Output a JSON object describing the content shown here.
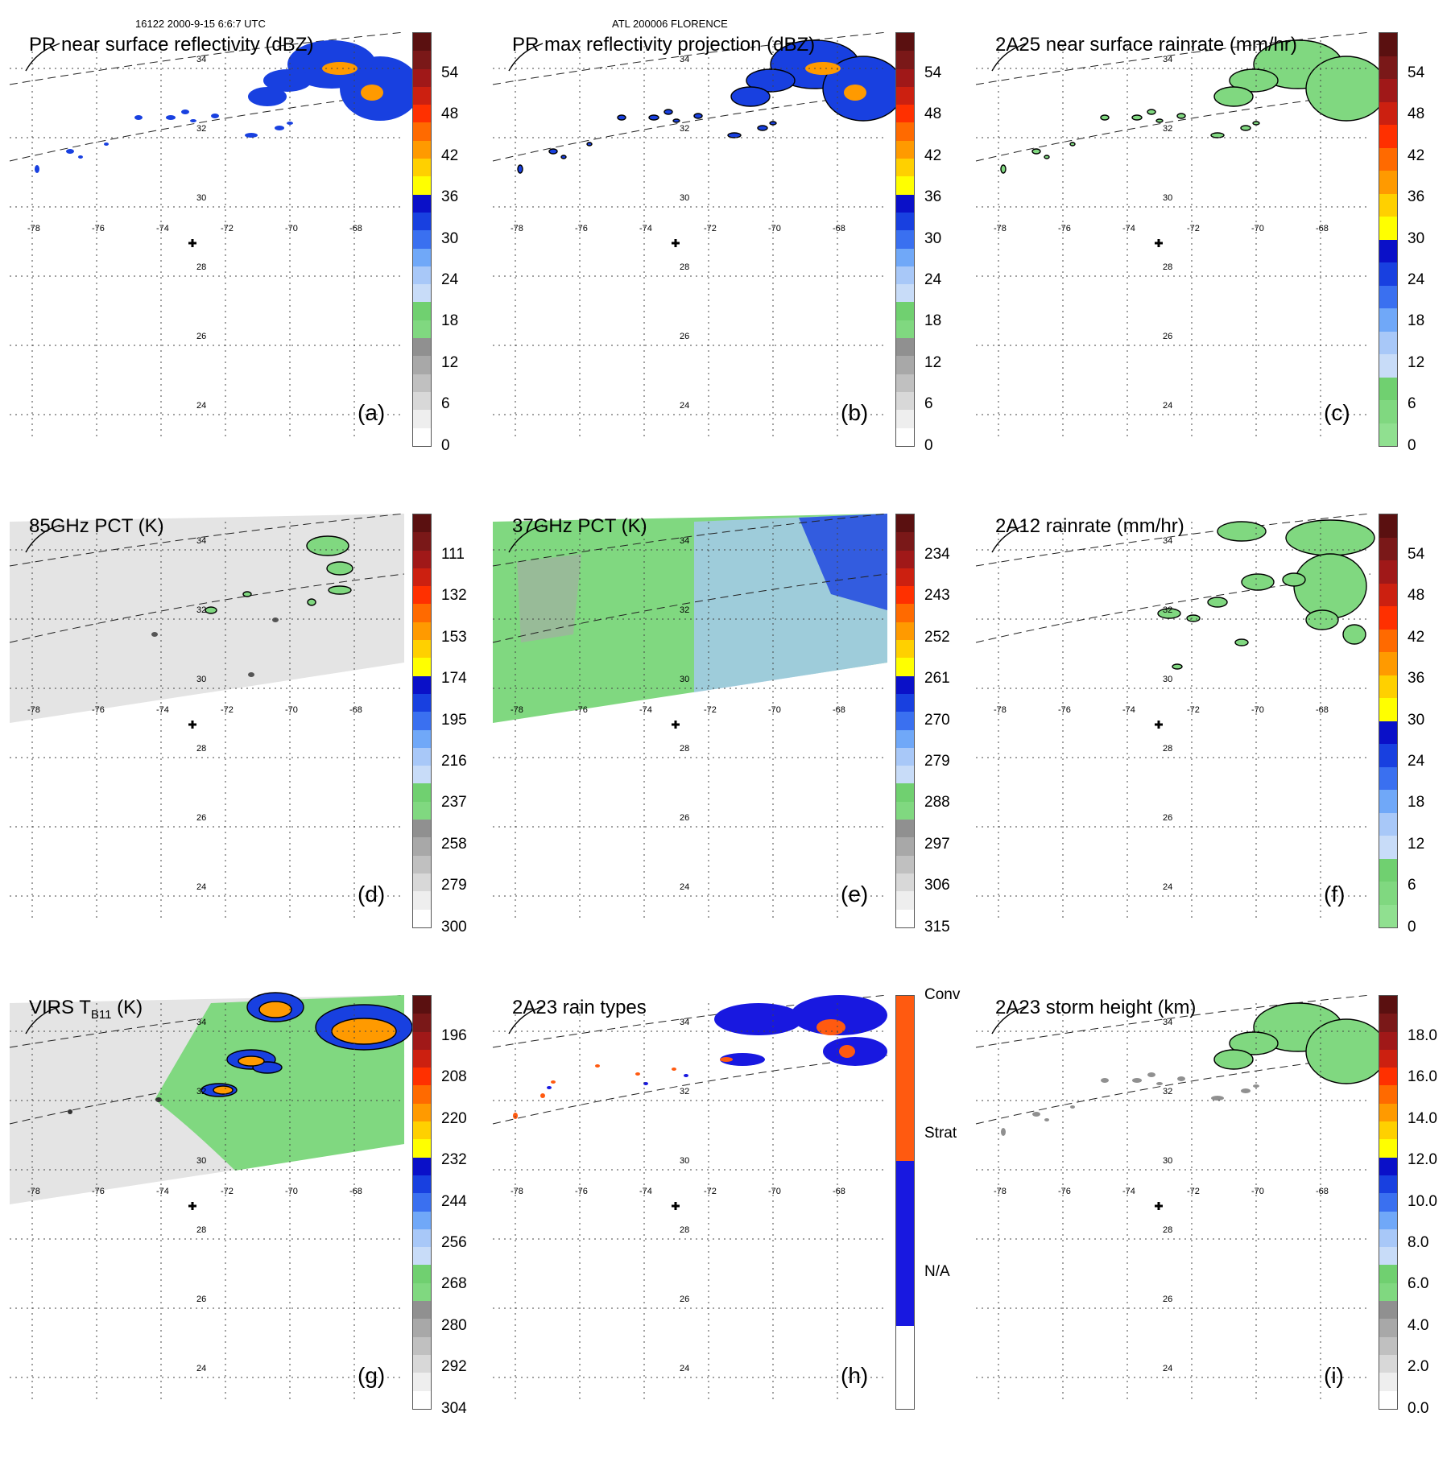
{
  "header": {
    "left": "16122 2000-9-15 6:6:7 UTC",
    "center": "ATL 200006 FLORENCE"
  },
  "axes": {
    "lon_labels": [
      "-78",
      "-76",
      "-74",
      "-72",
      "-70",
      "-68"
    ],
    "lat_labels": [
      "34",
      "32",
      "30",
      "28",
      "26",
      "24"
    ]
  },
  "panels": [
    {
      "id": "a",
      "title": "PR near surface reflectivity (dBZ)",
      "tag": "(a)",
      "cbar_labels": [
        "54",
        "48",
        "42",
        "36",
        "30",
        "24",
        "18",
        "12",
        "6",
        "0"
      ],
      "cbar": "dbz",
      "swath": "none"
    },
    {
      "id": "b",
      "title": "PR max reflectivity projection (dBZ)",
      "tag": "(b)",
      "cbar_labels": [
        "54",
        "48",
        "42",
        "36",
        "30",
        "24",
        "18",
        "12",
        "6",
        "0"
      ],
      "cbar": "dbz",
      "swath": "none"
    },
    {
      "id": "c",
      "title": "2A25 near surface rainrate (mm/hr)",
      "tag": "(c)",
      "cbar_labels": [
        "54",
        "48",
        "42",
        "36",
        "30",
        "24",
        "18",
        "12",
        "6",
        "0"
      ],
      "cbar": "rain",
      "swath": "none"
    },
    {
      "id": "d",
      "title": "85GHz PCT (K)",
      "tag": "(d)",
      "cbar_labels": [
        "111",
        "132",
        "153",
        "174",
        "195",
        "216",
        "237",
        "258",
        "279",
        "300"
      ],
      "cbar": "pct",
      "swath": "gray"
    },
    {
      "id": "e",
      "title": "37GHz PCT (K)",
      "tag": "(e)",
      "cbar_labels": [
        "234",
        "243",
        "252",
        "261",
        "270",
        "279",
        "288",
        "297",
        "306",
        "315"
      ],
      "cbar": "pct",
      "swath": "green"
    },
    {
      "id": "f",
      "title": "2A12 rainrate (mm/hr)",
      "tag": "(f)",
      "cbar_labels": [
        "54",
        "48",
        "42",
        "36",
        "30",
        "24",
        "18",
        "12",
        "6",
        "0"
      ],
      "cbar": "rain",
      "swath": "none"
    },
    {
      "id": "g",
      "title": "VIRS T",
      "title_sub": "B11",
      "title_suffix": " (K)",
      "tag": "(g)",
      "cbar_labels": [
        "196",
        "208",
        "220",
        "232",
        "244",
        "256",
        "268",
        "280",
        "292",
        "304"
      ],
      "cbar": "pct",
      "swath": "gray"
    },
    {
      "id": "h",
      "title": "2A23 rain types",
      "tag": "(h)",
      "cbar_labels": [
        "Conv",
        "Strat",
        "N/A"
      ],
      "cbar": "types",
      "swath": "none"
    },
    {
      "id": "i",
      "title": "2A23 storm height (km)",
      "tag": "(i)",
      "cbar_labels": [
        "18.0",
        "16.0",
        "14.0",
        "12.0",
        "10.0",
        "8.0",
        "6.0",
        "4.0",
        "2.0",
        "0.0"
      ],
      "cbar": "dbz",
      "swath": "none"
    }
  ],
  "colors": {
    "dbz": [
      "#5a1010",
      "#7a1818",
      "#a01818",
      "#cc2010",
      "#ff3000",
      "#ff6a00",
      "#ff9a00",
      "#ffd000",
      "#ffff00",
      "#0a10c8",
      "#1840e0",
      "#3a70f0",
      "#70a8f8",
      "#a8c8f8",
      "#c8dcf8",
      "#70d070",
      "#80d880",
      "#909090",
      "#a8a8a8",
      "#c0c0c0",
      "#d8d8d8",
      "#eeeeee",
      "#ffffff"
    ],
    "pct": [
      "#5a1010",
      "#7a1818",
      "#a01818",
      "#cc2010",
      "#ff3000",
      "#ff6a00",
      "#ff9a00",
      "#ffd000",
      "#ffff00",
      "#0a10c8",
      "#1840e0",
      "#3a70f0",
      "#70a8f8",
      "#a8c8f8",
      "#c8dcf8",
      "#70d070",
      "#80d880",
      "#909090",
      "#a8a8a8",
      "#c0c0c0",
      "#d8d8d8",
      "#eeeeee",
      "#ffffff"
    ],
    "rain": [
      "#5a1010",
      "#7a1818",
      "#a01818",
      "#cc2010",
      "#ff3000",
      "#ff6a00",
      "#ff9a00",
      "#ffd000",
      "#ffff00",
      "#0a10c8",
      "#1840e0",
      "#3a70f0",
      "#70a8f8",
      "#a8c8f8",
      "#c8dcf8",
      "#70d070",
      "#80d880",
      "#90e090"
    ],
    "types": [
      "#ff5a10",
      "#ff5a10",
      "#1818e0",
      "#1818e0",
      "#ffffff"
    ],
    "precip_green": "#80d880",
    "precip_blue": "#1840e0",
    "precip_orange": "#ff9a00",
    "precip_red": "#ff3000",
    "swath_gray": "#e4e4e4",
    "swath_green": "#80d880"
  }
}
